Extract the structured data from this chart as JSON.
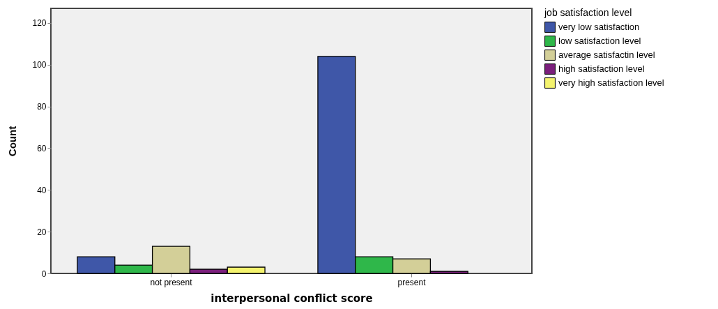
{
  "chart_data": {
    "type": "bar",
    "xlabel": "interpersonal conflict score",
    "ylabel": "Count",
    "legend_title": "job satisfaction level",
    "categories": [
      "not present",
      "present"
    ],
    "series": [
      {
        "name": "very low satisfaction",
        "color": "#3f57a8",
        "values": [
          8,
          104
        ]
      },
      {
        "name": "low satisfaction level",
        "color": "#2fb74a",
        "values": [
          4,
          8
        ]
      },
      {
        "name": "average satisfactin level",
        "color": "#d3cf98",
        "values": [
          13,
          7
        ]
      },
      {
        "name": "high satisfaction level",
        "color": "#7b1f7c",
        "values": [
          2,
          1
        ]
      },
      {
        "name": "very high satisfaction level",
        "color": "#f4f36e",
        "values": [
          3,
          null
        ]
      }
    ],
    "ylim": [
      0,
      127
    ],
    "yticks": [
      0,
      20,
      40,
      60,
      80,
      100,
      120
    ],
    "grid": false,
    "legend": "top right"
  }
}
